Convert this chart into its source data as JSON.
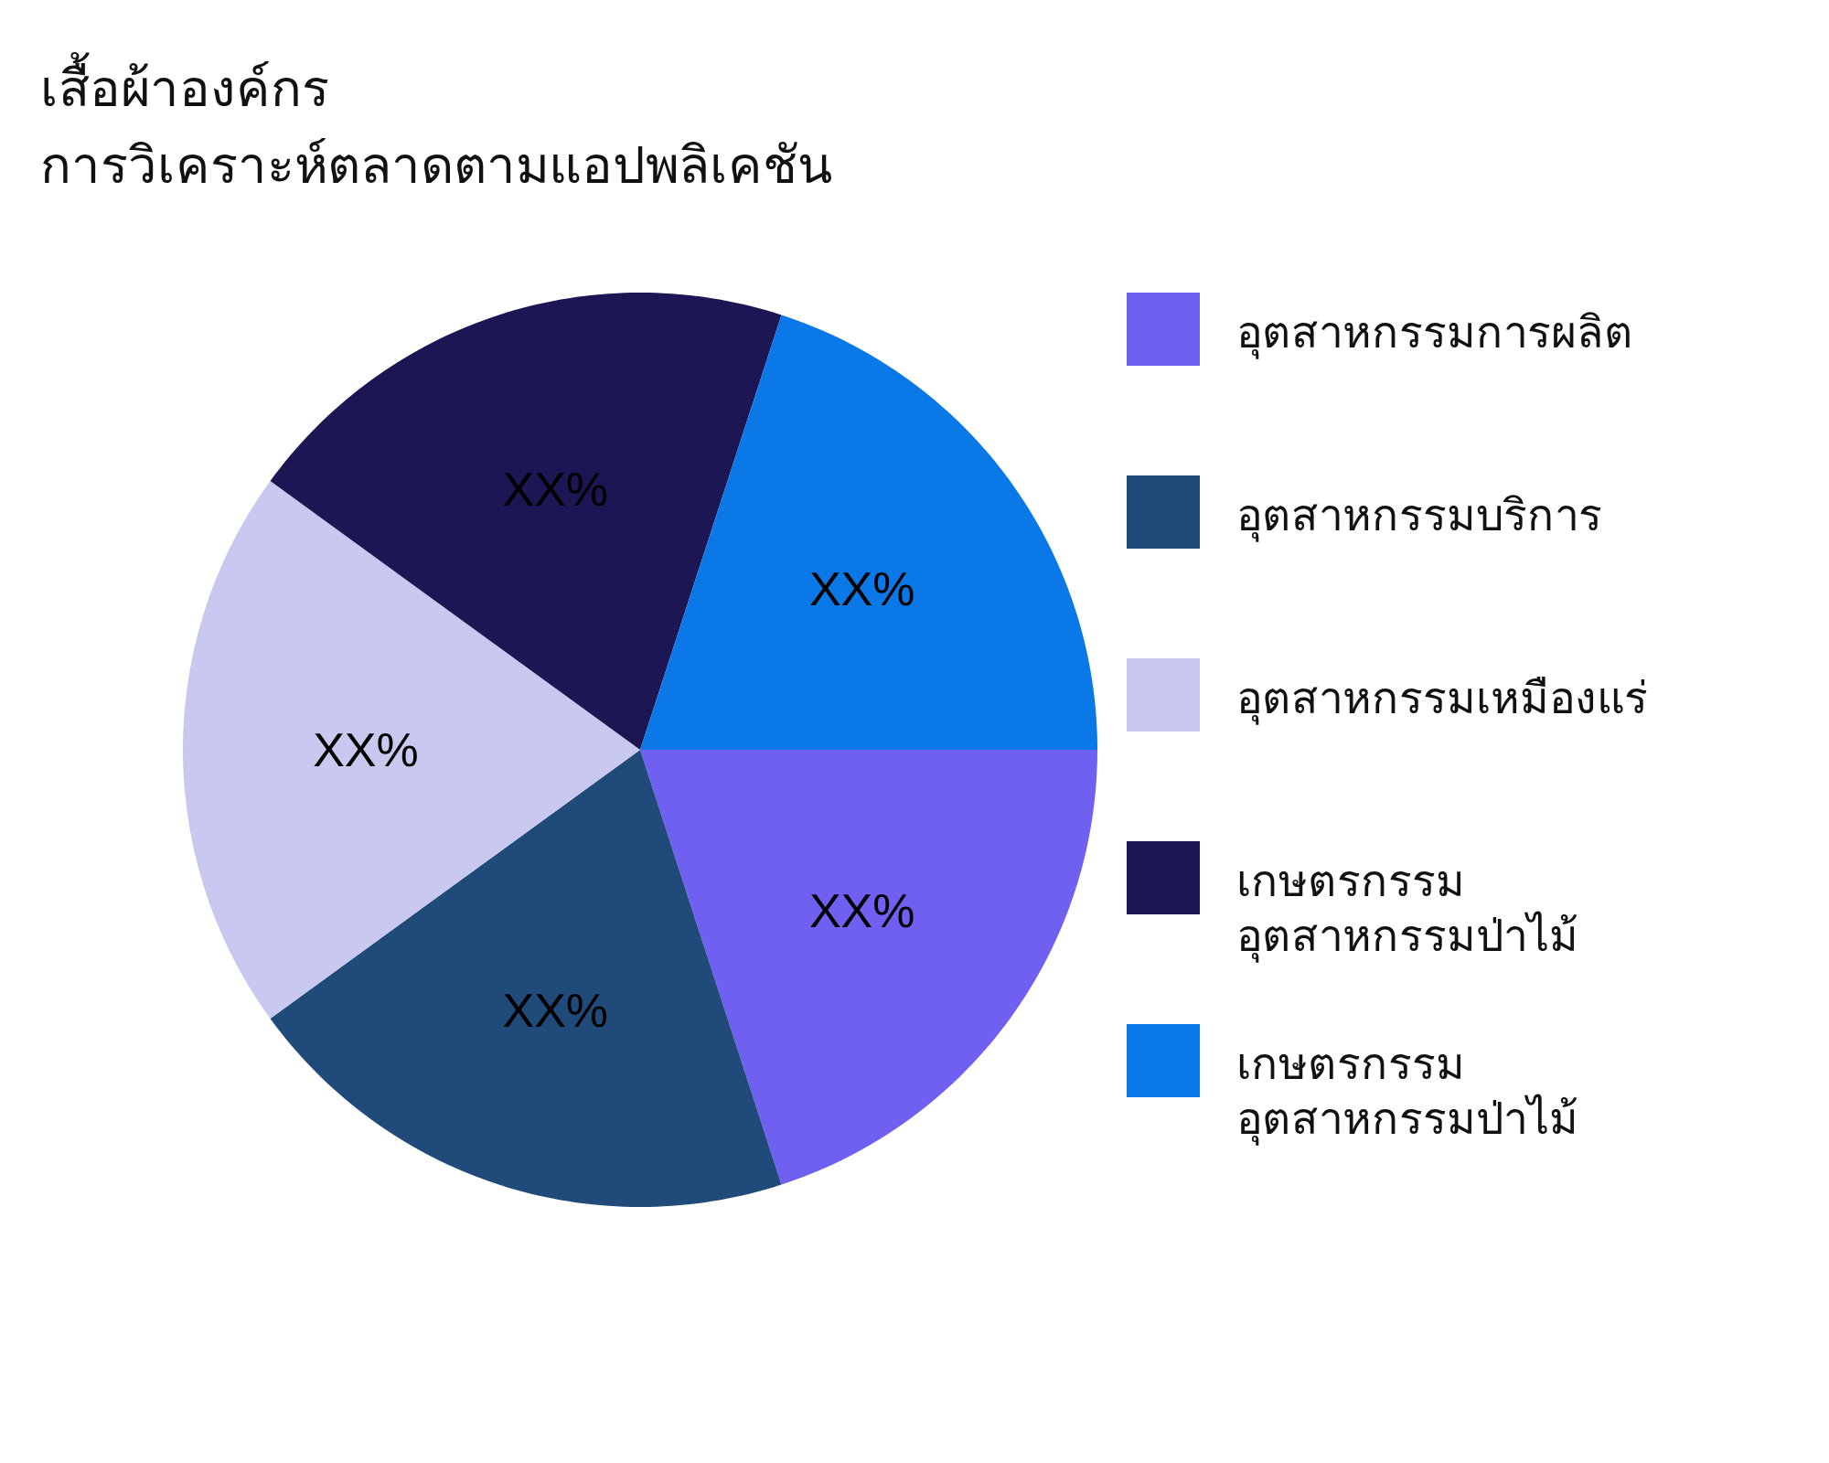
{
  "chart_data": {
    "type": "pie",
    "title": "เสื้อผ้าองค์กร",
    "subtitle": "การวิเคราะห์ตลาดตามแอปพลิเคชัน",
    "categories": [
      "อุตสาหกรรมการผลิต",
      "อุตสาหกรรมบริการ",
      "อุตสาหกรรมเหมืองแร่",
      "เกษตรกรรม อุตสาหกรรมป่าไม้",
      "เกษตรกรรม อุตสาหกรรมป่าไม้"
    ],
    "values": [
      20,
      20,
      20,
      20,
      20
    ],
    "colors": [
      "#7060f2",
      "#1f4a7a",
      "#c8c8f0",
      "#1c1655",
      "#0a78e6"
    ],
    "value_labels": [
      "XX%",
      "XX%",
      "XX%",
      "XX%",
      "XX%"
    ],
    "legend": "right"
  }
}
